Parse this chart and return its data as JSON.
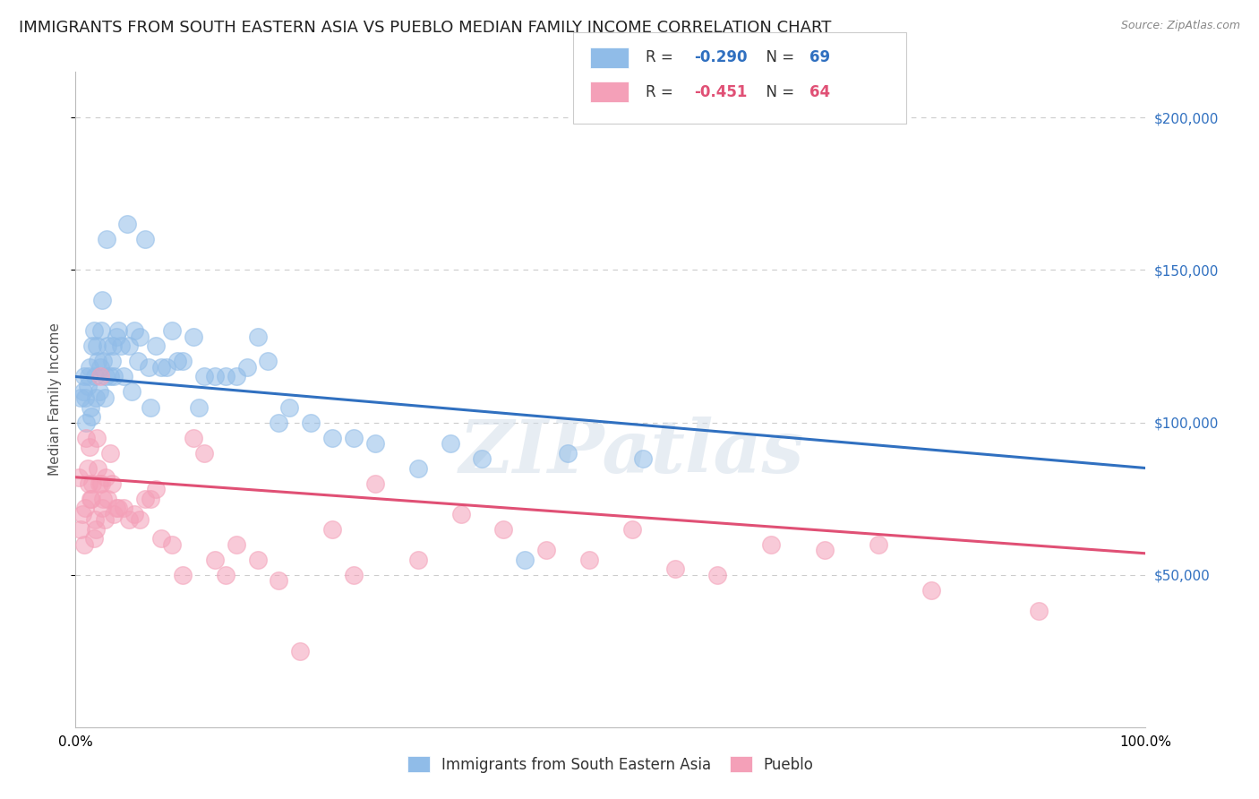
{
  "title": "IMMIGRANTS FROM SOUTH EASTERN ASIA VS PUEBLO MEDIAN FAMILY INCOME CORRELATION CHART",
  "source": "Source: ZipAtlas.com",
  "ylabel": "Median Family Income",
  "ytick_values": [
    50000,
    100000,
    150000,
    200000
  ],
  "ylim": [
    0,
    215000
  ],
  "xlim": [
    0.0,
    1.0
  ],
  "blue_line_intercept": 115000,
  "blue_line_slope": -30000,
  "pink_line_intercept": 82000,
  "pink_line_slope": -25000,
  "blue_scatter_x": [
    0.005,
    0.007,
    0.008,
    0.009,
    0.01,
    0.011,
    0.012,
    0.013,
    0.014,
    0.015,
    0.016,
    0.017,
    0.018,
    0.019,
    0.02,
    0.021,
    0.022,
    0.023,
    0.024,
    0.025,
    0.026,
    0.027,
    0.028,
    0.029,
    0.03,
    0.032,
    0.034,
    0.035,
    0.036,
    0.038,
    0.04,
    0.042,
    0.045,
    0.048,
    0.05,
    0.052,
    0.055,
    0.058,
    0.06,
    0.065,
    0.068,
    0.07,
    0.075,
    0.08,
    0.085,
    0.09,
    0.095,
    0.1,
    0.11,
    0.115,
    0.12,
    0.13,
    0.14,
    0.15,
    0.16,
    0.17,
    0.18,
    0.19,
    0.2,
    0.22,
    0.24,
    0.26,
    0.28,
    0.32,
    0.35,
    0.38,
    0.42,
    0.46,
    0.53
  ],
  "blue_scatter_y": [
    108000,
    110000,
    115000,
    108000,
    100000,
    112000,
    115000,
    118000,
    105000,
    102000,
    125000,
    130000,
    115000,
    108000,
    125000,
    120000,
    110000,
    118000,
    130000,
    140000,
    120000,
    108000,
    115000,
    160000,
    125000,
    115000,
    120000,
    125000,
    115000,
    128000,
    130000,
    125000,
    115000,
    165000,
    125000,
    110000,
    130000,
    120000,
    128000,
    160000,
    118000,
    105000,
    125000,
    118000,
    118000,
    130000,
    120000,
    120000,
    128000,
    105000,
    115000,
    115000,
    115000,
    115000,
    118000,
    128000,
    120000,
    100000,
    105000,
    100000,
    95000,
    95000,
    93000,
    85000,
    93000,
    88000,
    55000,
    90000,
    88000
  ],
  "pink_scatter_x": [
    0.003,
    0.005,
    0.006,
    0.008,
    0.009,
    0.01,
    0.011,
    0.012,
    0.013,
    0.014,
    0.015,
    0.016,
    0.017,
    0.018,
    0.019,
    0.02,
    0.021,
    0.022,
    0.023,
    0.024,
    0.025,
    0.026,
    0.027,
    0.028,
    0.03,
    0.032,
    0.034,
    0.036,
    0.038,
    0.04,
    0.045,
    0.05,
    0.055,
    0.06,
    0.065,
    0.07,
    0.075,
    0.08,
    0.09,
    0.1,
    0.11,
    0.12,
    0.13,
    0.14,
    0.15,
    0.17,
    0.19,
    0.21,
    0.24,
    0.26,
    0.28,
    0.32,
    0.36,
    0.4,
    0.44,
    0.48,
    0.52,
    0.56,
    0.6,
    0.65,
    0.7,
    0.75,
    0.8,
    0.9
  ],
  "pink_scatter_y": [
    82000,
    65000,
    70000,
    60000,
    72000,
    95000,
    85000,
    80000,
    92000,
    75000,
    75000,
    80000,
    62000,
    68000,
    65000,
    95000,
    85000,
    80000,
    115000,
    80000,
    72000,
    75000,
    68000,
    82000,
    75000,
    90000,
    80000,
    70000,
    72000,
    72000,
    72000,
    68000,
    70000,
    68000,
    75000,
    75000,
    78000,
    62000,
    60000,
    50000,
    95000,
    90000,
    55000,
    50000,
    60000,
    55000,
    48000,
    25000,
    65000,
    50000,
    80000,
    55000,
    70000,
    65000,
    58000,
    55000,
    65000,
    52000,
    50000,
    60000,
    58000,
    60000,
    45000,
    38000
  ],
  "scatter_size": 200,
  "scatter_alpha": 0.55,
  "blue_scatter_color": "#90bce8",
  "pink_scatter_color": "#f4a0b8",
  "blue_line_color": "#3070c0",
  "pink_line_color": "#e05075",
  "grid_color": "#cccccc",
  "background_color": "#ffffff",
  "title_fontsize": 13,
  "source_fontsize": 9,
  "axis_label_fontsize": 11,
  "tick_fontsize": 11,
  "watermark_text": "ZIPatlas",
  "watermark_fontsize": 60,
  "watermark_color": "#d0dce8",
  "watermark_alpha": 0.5,
  "legend_r1": "R = -0.290",
  "legend_n1": "N = 69",
  "legend_r2": "R = -0.451",
  "legend_n2": "N = 64",
  "legend_label1": "Immigrants from South Eastern Asia",
  "legend_label2": "Pueblo"
}
